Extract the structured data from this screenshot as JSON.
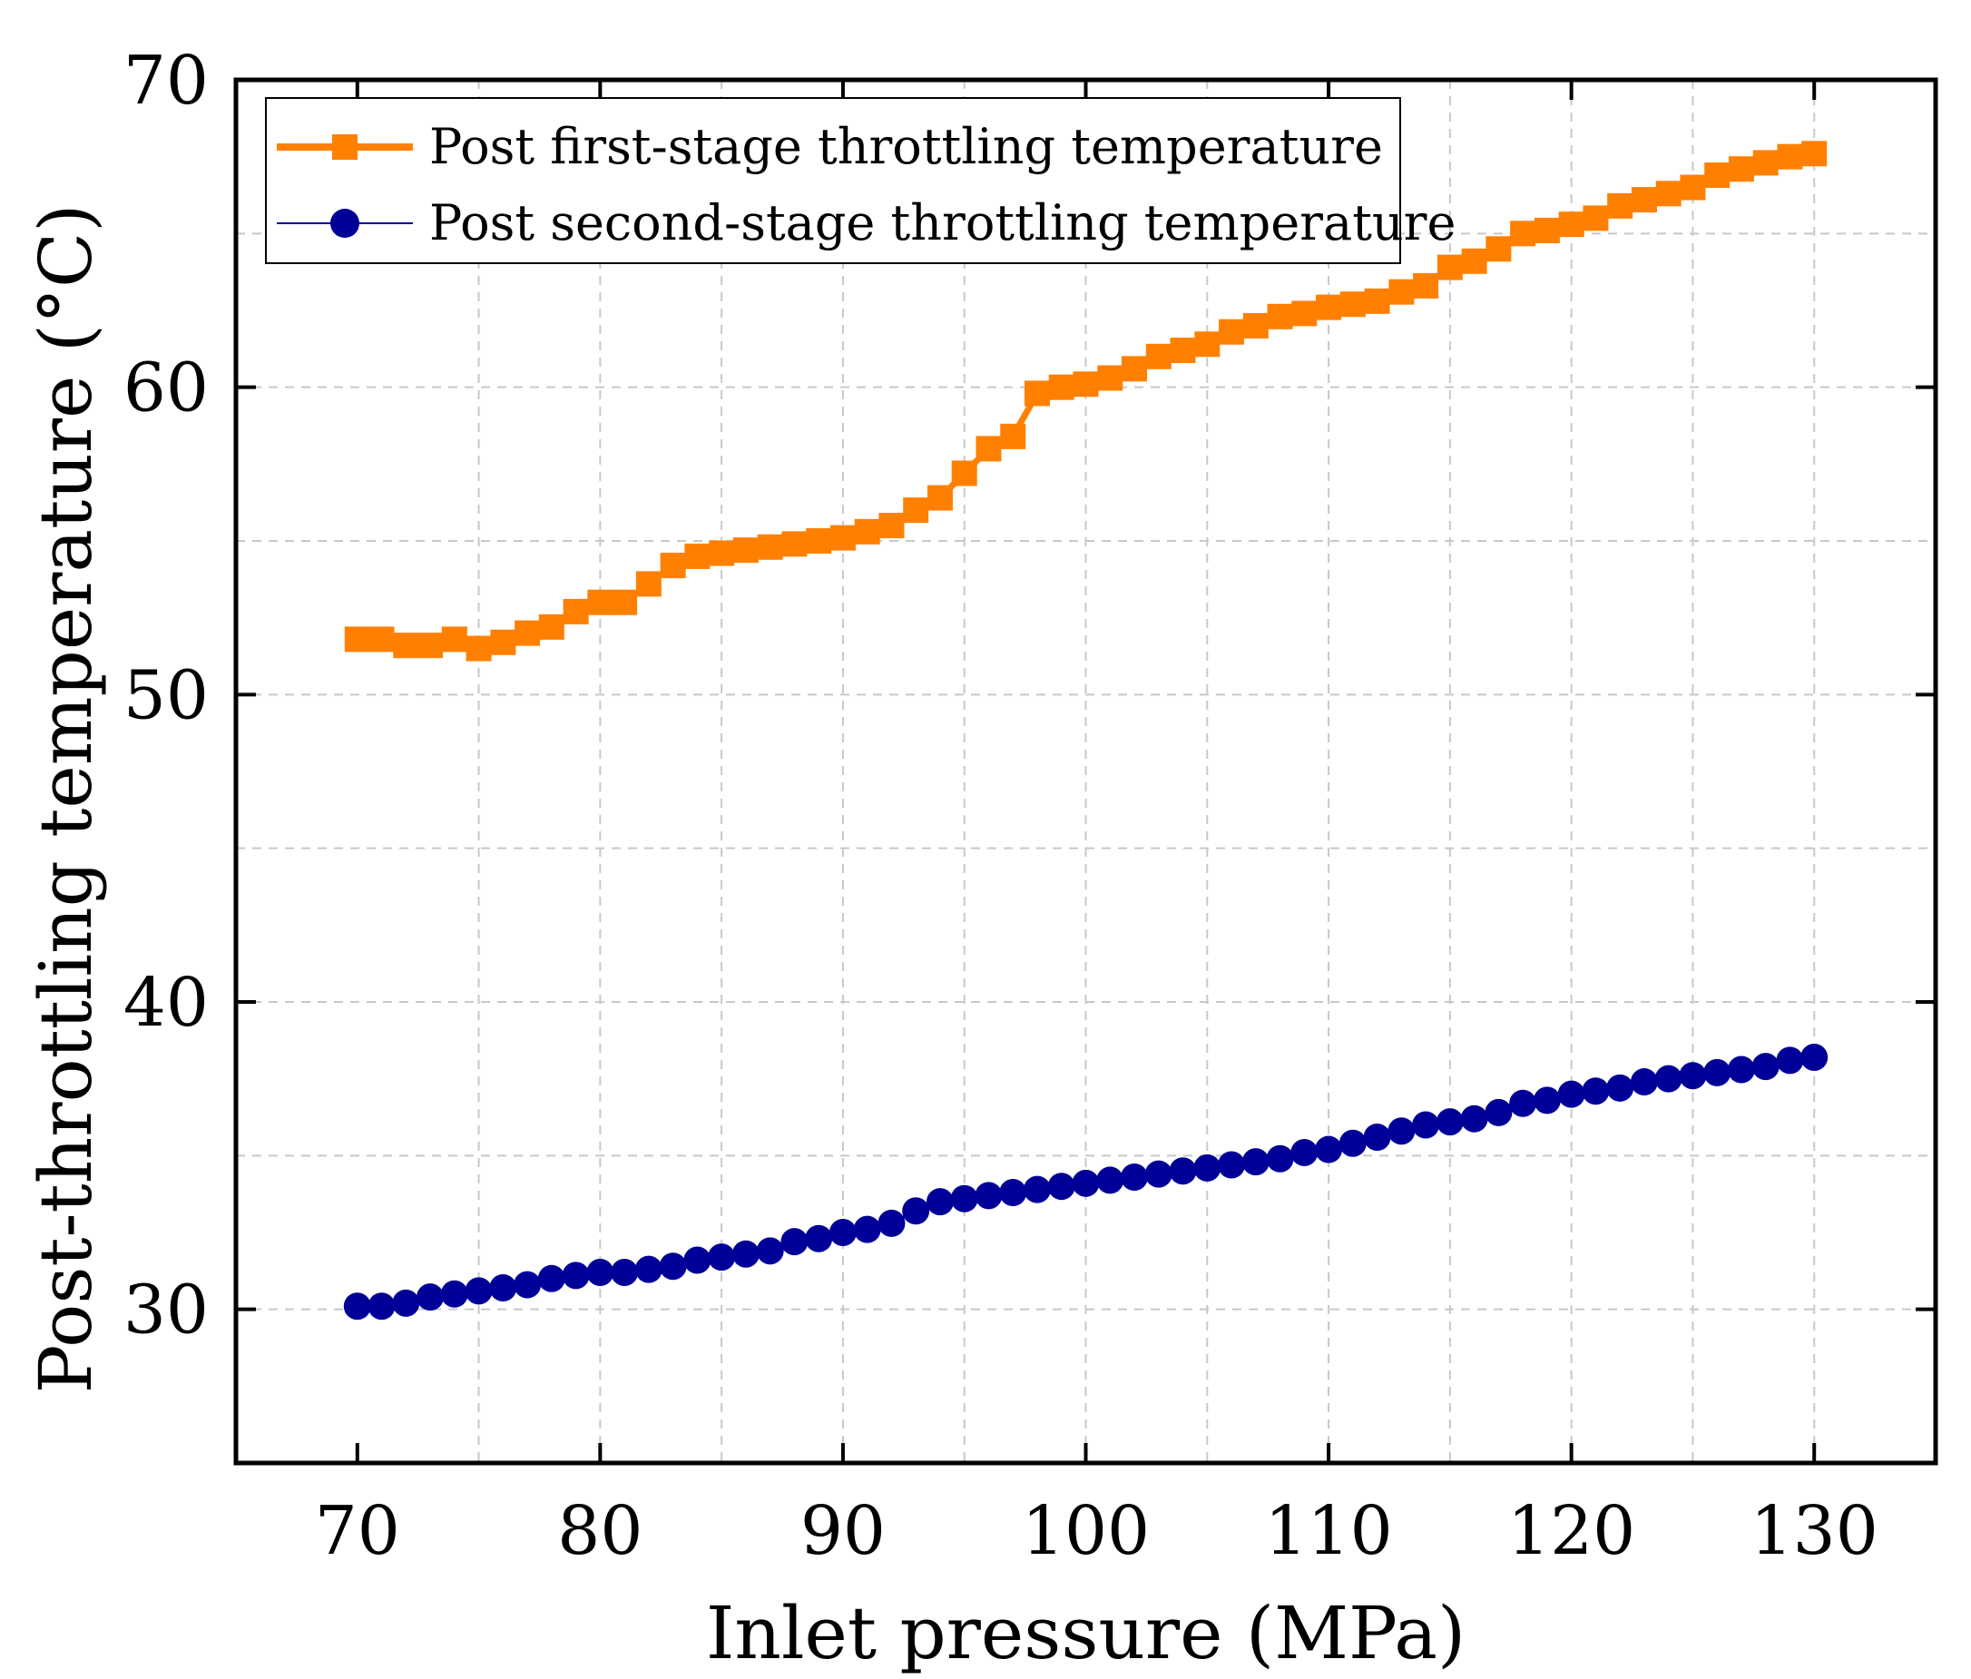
{
  "chart_data": {
    "type": "line",
    "xlabel": "Inlet pressure (MPa)",
    "ylabel": "Post-throttling temperature (°C)",
    "xlim": [
      65,
      135
    ],
    "ylim": [
      25,
      70
    ],
    "xticks": [
      70,
      80,
      90,
      100,
      110,
      120,
      130
    ],
    "yticks": [
      30,
      40,
      50,
      60,
      70
    ],
    "xtick_labels": [
      "70",
      "80",
      "90",
      "100",
      "110",
      "120",
      "130"
    ],
    "ytick_labels": [
      "30",
      "40",
      "50",
      "60",
      "70"
    ],
    "grid": true,
    "legend_position": "top-left",
    "x": [
      70,
      71,
      72,
      73,
      74,
      75,
      76,
      77,
      78,
      79,
      80,
      81,
      82,
      83,
      84,
      85,
      86,
      87,
      88,
      89,
      90,
      91,
      92,
      93,
      94,
      95,
      96,
      97,
      98,
      99,
      100,
      101,
      102,
      103,
      104,
      105,
      106,
      107,
      108,
      109,
      110,
      111,
      112,
      113,
      114,
      115,
      116,
      117,
      118,
      119,
      120,
      121,
      122,
      123,
      124,
      125,
      126,
      127,
      128,
      129,
      130
    ],
    "series": [
      {
        "name": "Post first-stage throttling temperature",
        "color": "#ff8000",
        "marker": "square",
        "values": [
          51.8,
          51.8,
          51.6,
          51.6,
          51.8,
          51.5,
          51.7,
          52.0,
          52.2,
          52.7,
          53.0,
          53.0,
          53.6,
          54.2,
          54.5,
          54.6,
          54.7,
          54.8,
          54.9,
          55.0,
          55.1,
          55.3,
          55.5,
          56.0,
          56.4,
          57.2,
          58.0,
          58.4,
          59.8,
          60.0,
          60.1,
          60.3,
          60.6,
          61.0,
          61.2,
          61.4,
          61.8,
          62.0,
          62.3,
          62.4,
          62.6,
          62.7,
          62.8,
          63.1,
          63.3,
          63.9,
          64.1,
          64.5,
          65.0,
          65.1,
          65.3,
          65.5,
          65.9,
          66.1,
          66.3,
          66.5,
          66.9,
          67.1,
          67.3,
          67.5,
          67.6
        ]
      },
      {
        "name": "Post second-stage throttling temperature",
        "color": "#000099",
        "marker": "circle",
        "values": [
          30.1,
          30.1,
          30.2,
          30.4,
          30.5,
          30.6,
          30.7,
          30.8,
          31.0,
          31.1,
          31.2,
          31.2,
          31.3,
          31.4,
          31.6,
          31.7,
          31.8,
          31.9,
          32.2,
          32.3,
          32.5,
          32.6,
          32.8,
          33.2,
          33.5,
          33.6,
          33.7,
          33.8,
          33.9,
          34.0,
          34.1,
          34.2,
          34.3,
          34.4,
          34.5,
          34.6,
          34.7,
          34.8,
          34.9,
          35.1,
          35.2,
          35.4,
          35.6,
          35.8,
          36.0,
          36.1,
          36.2,
          36.4,
          36.7,
          36.8,
          37.0,
          37.1,
          37.2,
          37.4,
          37.5,
          37.6,
          37.7,
          37.8,
          37.9,
          38.1,
          38.2
        ]
      }
    ]
  }
}
